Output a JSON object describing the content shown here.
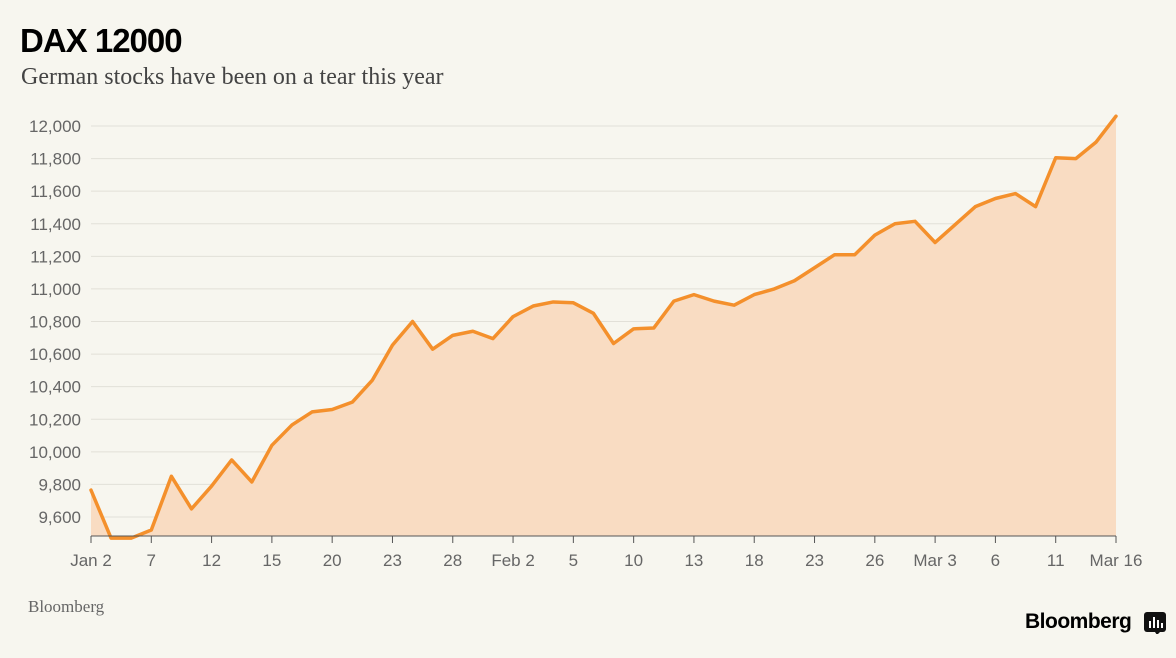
{
  "title": "DAX 12000",
  "subtitle": "German stocks have been on a tear this year",
  "source": "Bloomberg",
  "brand": "Bloomberg",
  "brand_icon": "chart-bars-icon",
  "colors": {
    "background": "#f7f6ef",
    "line": "#f4902c",
    "area": "#f9dcc2",
    "grid": "#e2e0d8",
    "axis_text": "#666666"
  },
  "chart_data": {
    "type": "area",
    "title": "DAX 12000",
    "subtitle": "German stocks have been on a tear this year",
    "xlabel": "",
    "ylabel": "",
    "ylim": [
      9470,
      12060
    ],
    "grid": true,
    "yticks": [
      9600,
      9800,
      10000,
      10200,
      10400,
      10600,
      10800,
      11000,
      11200,
      11400,
      11600,
      11800,
      12000
    ],
    "ytick_labels": [
      "9,600",
      "9,800",
      "10,000",
      "10,200",
      "10,400",
      "10,600",
      "10,800",
      "11,000",
      "11,200",
      "11,400",
      "11,600",
      "11,800",
      "12,000"
    ],
    "xtick_labels": [
      {
        "label": "Jan 2",
        "index": 0
      },
      {
        "label": "7",
        "index": 3
      },
      {
        "label": "12",
        "index": 6
      },
      {
        "label": "15",
        "index": 9
      },
      {
        "label": "20",
        "index": 12
      },
      {
        "label": "23",
        "index": 15
      },
      {
        "label": "28",
        "index": 18
      },
      {
        "label": "Feb 2",
        "index": 21
      },
      {
        "label": "5",
        "index": 24
      },
      {
        "label": "10",
        "index": 27
      },
      {
        "label": "13",
        "index": 30
      },
      {
        "label": "18",
        "index": 33
      },
      {
        "label": "23",
        "index": 36
      },
      {
        "label": "26",
        "index": 39
      },
      {
        "label": "Mar 3",
        "index": 42
      },
      {
        "label": "6",
        "index": 45
      },
      {
        "label": "11",
        "index": 48
      },
      {
        "label": "Mar 16",
        "index": 51
      }
    ],
    "series": [
      {
        "name": "DAX",
        "values": [
          9765,
          9470,
          9470,
          9520,
          9850,
          9650,
          9790,
          9950,
          9815,
          10040,
          10165,
          10245,
          10260,
          10305,
          10440,
          10655,
          10800,
          10630,
          10715,
          10740,
          10695,
          10830,
          10895,
          10920,
          10915,
          10850,
          10665,
          10755,
          10760,
          10925,
          10965,
          10925,
          10900,
          10965,
          11000,
          11050,
          11130,
          11210,
          11210,
          11330,
          11400,
          11415,
          11285,
          11395,
          11505,
          11555,
          11585,
          11505,
          11805,
          11800,
          11900,
          12060
        ]
      }
    ]
  }
}
